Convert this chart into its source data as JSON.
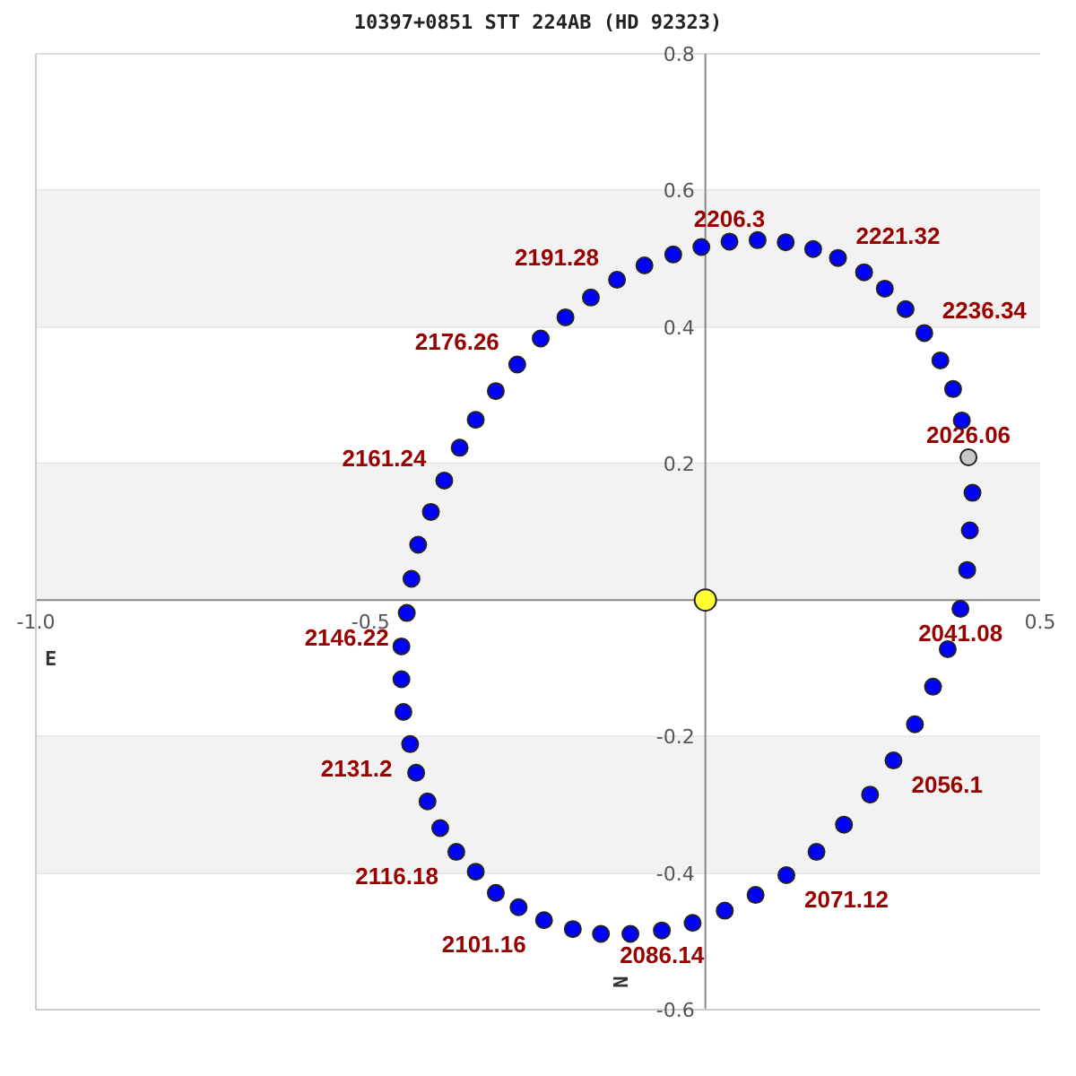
{
  "chart_data": {
    "type": "scatter",
    "title": "10397+0851 STT 224AB (HD 92323)",
    "xlabel": "E",
    "ylabel": "N",
    "xlim": [
      -1,
      0.5
    ],
    "ylim": [
      -0.6,
      0.8
    ],
    "xticks": [
      {
        "value": -1,
        "label": "-1.0"
      },
      -0.5,
      0.5
    ],
    "yticks": [
      0.8,
      0.6,
      0.4,
      0.2,
      -0.2,
      -0.4,
      -0.6
    ],
    "annotations": [
      {
        "text": "2026.06",
        "x": 0.393,
        "y": 0.209
      },
      {
        "text": "2041.08",
        "x": 0.381,
        "y": -0.013
      },
      {
        "text": "2056.1",
        "x": 0.281,
        "y": -0.235
      },
      {
        "text": "2071.12",
        "x": 0.121,
        "y": -0.403
      },
      {
        "text": "2086.14",
        "x": -0.065,
        "y": -0.484
      },
      {
        "text": "2101.16",
        "x": -0.241,
        "y": -0.469
      },
      {
        "text": "2116.18",
        "x": -0.372,
        "y": -0.369
      },
      {
        "text": "2131.2",
        "x": -0.441,
        "y": -0.211
      },
      {
        "text": "2146.22",
        "x": -0.446,
        "y": -0.019
      },
      {
        "text": "2161.24",
        "x": -0.39,
        "y": 0.175
      },
      {
        "text": "2176.26",
        "x": -0.281,
        "y": 0.345
      },
      {
        "text": "2191.28",
        "x": -0.132,
        "y": 0.469
      },
      {
        "text": "2206.3",
        "x": 0.036,
        "y": 0.525
      },
      {
        "text": "2221.32",
        "x": 0.198,
        "y": 0.501
      },
      {
        "text": "2236.34",
        "x": 0.327,
        "y": 0.391
      }
    ],
    "grid": "y",
    "legend": false,
    "marker": "circle",
    "bands": [
      {
        "axis": "y",
        "from": 0.4,
        "to": 0.6,
        "color": "#f2f2f2"
      },
      {
        "axis": "y",
        "from": 0,
        "to": 0.2,
        "color": "#f2f2f2"
      },
      {
        "axis": "y",
        "from": -0.4,
        "to": -0.2,
        "color": "#f2f2f2"
      }
    ],
    "series": [
      {
        "color": "#0000ff",
        "x": [
          0.393,
          0.399,
          0.395,
          0.391,
          0.381,
          0.362,
          0.34,
          0.313,
          0.281,
          0.246,
          0.207,
          0.166,
          0.121,
          0.075,
          0.029,
          -0.019,
          -0.065,
          -0.112,
          -0.156,
          -0.198,
          -0.241,
          -0.279,
          -0.313,
          -0.343,
          -0.372,
          -0.396,
          -0.415,
          -0.432,
          -0.441,
          -0.451,
          -0.454,
          -0.454,
          -0.446,
          -0.439,
          -0.429,
          -0.41,
          -0.39,
          -0.367,
          -0.343,
          -0.313,
          -0.281,
          -0.246,
          -0.209,
          -0.171,
          -0.132,
          -0.091,
          -0.048,
          -0.006,
          0.036,
          0.078,
          0.12,
          0.161,
          0.198,
          0.237,
          0.268,
          0.299,
          0.327,
          0.351,
          0.37,
          0.383
        ],
        "values": [
          0.209,
          0.157,
          0.102,
          0.044,
          -0.013,
          -0.072,
          -0.127,
          -0.182,
          -0.235,
          -0.285,
          -0.329,
          -0.369,
          -0.403,
          -0.432,
          -0.455,
          -0.473,
          -0.484,
          -0.489,
          -0.489,
          -0.482,
          -0.469,
          -0.45,
          -0.429,
          -0.398,
          -0.369,
          -0.334,
          -0.295,
          -0.253,
          -0.211,
          -0.164,
          -0.116,
          -0.068,
          -0.019,
          0.031,
          0.081,
          0.129,
          0.175,
          0.223,
          0.264,
          0.306,
          0.345,
          0.383,
          0.414,
          0.443,
          0.469,
          0.49,
          0.506,
          0.517,
          0.525,
          0.527,
          0.524,
          0.514,
          0.501,
          0.48,
          0.456,
          0.426,
          0.391,
          0.351,
          0.309,
          0.263
        ],
        "colors": [
          "#c8c8c8",
          "#0000ff",
          "#0000ff",
          "#0000ff",
          "#0000ff",
          "#0000ff",
          "#0000ff",
          "#0000ff",
          "#0000ff",
          "#0000ff",
          "#0000ff",
          "#0000ff",
          "#0000ff",
          "#0000ff",
          "#0000ff",
          "#0000ff",
          "#0000ff",
          "#0000ff",
          "#0000ff",
          "#0000ff",
          "#0000ff",
          "#0000ff",
          "#0000ff",
          "#0000ff",
          "#0000ff",
          "#0000ff",
          "#0000ff",
          "#0000ff",
          "#0000ff",
          "#0000ff",
          "#0000ff",
          "#0000ff",
          "#0000ff",
          "#0000ff",
          "#0000ff",
          "#0000ff",
          "#0000ff",
          "#0000ff",
          "#0000ff",
          "#0000ff",
          "#0000ff",
          "#0000ff",
          "#0000ff",
          "#0000ff",
          "#0000ff",
          "#0000ff",
          "#0000ff",
          "#0000ff",
          "#0000ff",
          "#0000ff",
          "#0000ff",
          "#0000ff",
          "#0000ff",
          "#0000ff",
          "#0000ff",
          "#0000ff",
          "#0000ff",
          "#0000ff",
          "#0000ff",
          "#0000ff"
        ]
      },
      {
        "color": "#ffff33",
        "x": [
          0
        ],
        "values": [
          0
        ]
      }
    ]
  }
}
